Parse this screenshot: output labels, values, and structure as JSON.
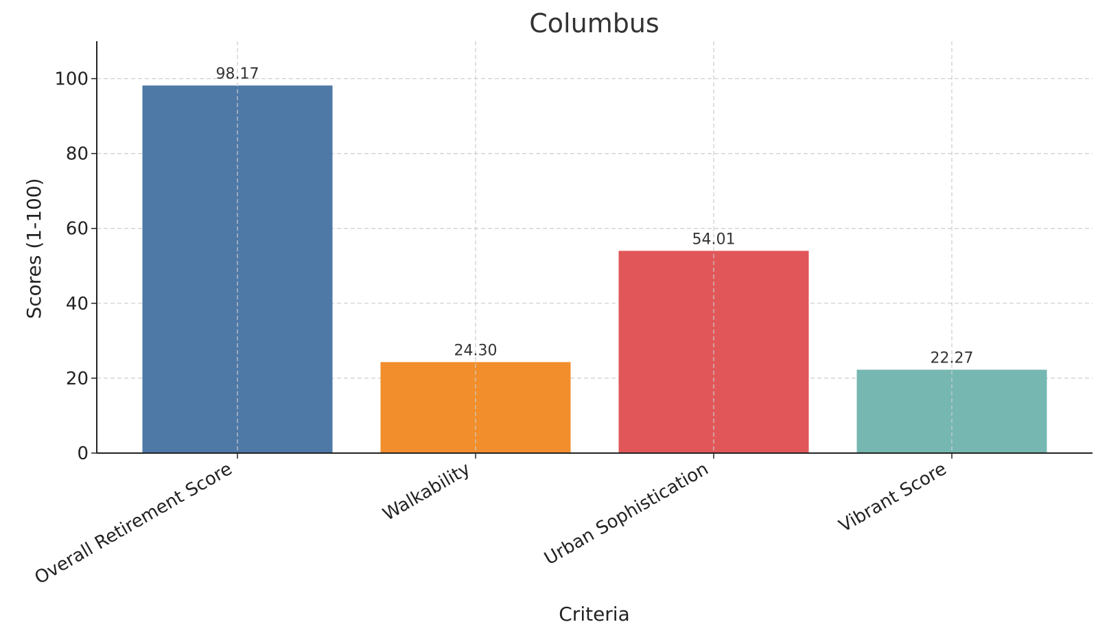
{
  "chart_data": {
    "type": "bar",
    "title": "Columbus",
    "xlabel": "Criteria",
    "ylabel": "Scores (1-100)",
    "categories": [
      "Overall Retirement Score",
      "Walkability",
      "Urban Sophistication",
      "Vibrant Score"
    ],
    "values": [
      98.17,
      24.3,
      54.01,
      22.27
    ],
    "value_labels": [
      "98.17",
      "24.30",
      "54.01",
      "22.27"
    ],
    "colors": [
      "#4e79a7",
      "#f28e2b",
      "#e15759",
      "#76b7b2"
    ],
    "ylim": [
      0,
      110
    ],
    "yticks": [
      0,
      20,
      40,
      60,
      80,
      100
    ],
    "grid": true
  }
}
